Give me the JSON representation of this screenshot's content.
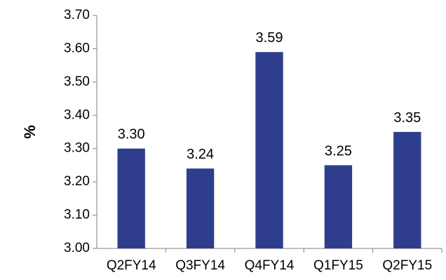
{
  "chart_data": {
    "type": "bar",
    "categories": [
      "Q2FY14",
      "Q3FY14",
      "Q4FY14",
      "Q1FY15",
      "Q2FY15"
    ],
    "values": [
      3.3,
      3.24,
      3.59,
      3.25,
      3.35
    ],
    "data_labels": [
      "3.30",
      "3.24",
      "3.59",
      "3.25",
      "3.35"
    ],
    "title": "",
    "xlabel": "",
    "ylabel": "%",
    "ylim": [
      3.0,
      3.7
    ],
    "yticks": [
      3.0,
      3.1,
      3.2,
      3.3,
      3.4,
      3.5,
      3.6,
      3.7
    ],
    "ytick_labels": [
      "3.00",
      "3.10",
      "3.20",
      "3.30",
      "3.40",
      "3.50",
      "3.60",
      "3.70"
    ],
    "grid": false,
    "legend": "none",
    "bar_color": "#2E3E8C"
  }
}
